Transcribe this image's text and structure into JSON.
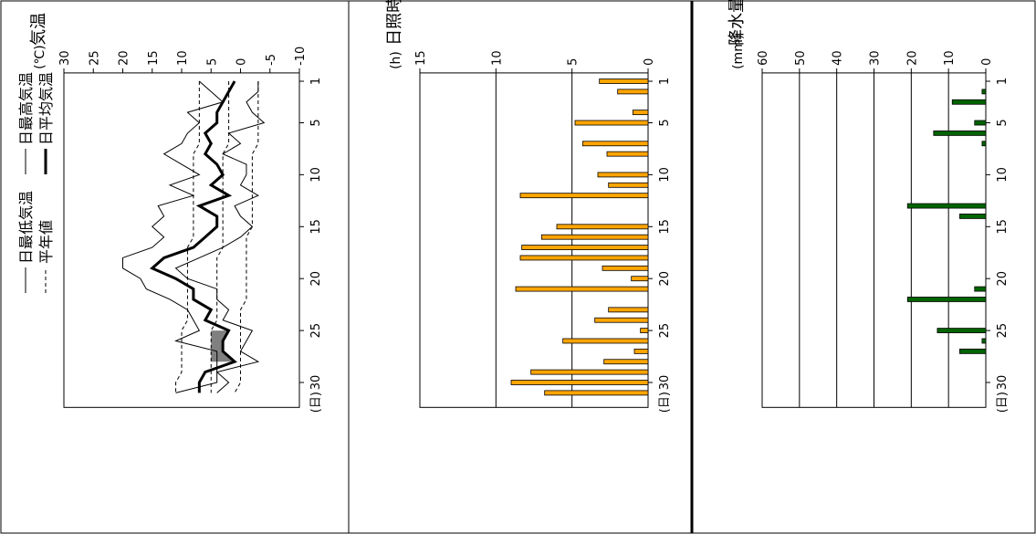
{
  "chart_data": [
    {
      "type": "line",
      "title": "気温",
      "unit_label": "(℃)",
      "ylim": [
        -10,
        30
      ],
      "y_ticks": [
        "30",
        "25",
        "20",
        "15",
        "10",
        "5",
        "0",
        "-5",
        "-10"
      ],
      "x_ticks": [
        "1",
        "5",
        "10",
        "15",
        "20",
        "25",
        "30"
      ],
      "x_unit": "(日)",
      "legend": [
        "日最高気温",
        "日平均気温",
        "日最低気温",
        "平年値"
      ],
      "x": [
        1,
        2,
        3,
        4,
        5,
        6,
        7,
        8,
        9,
        10,
        11,
        12,
        13,
        14,
        15,
        16,
        17,
        18,
        19,
        20,
        21,
        22,
        23,
        24,
        25,
        26,
        27,
        28,
        29,
        30,
        31
      ],
      "series": [
        {
          "name": "日最高気温",
          "values": [
            7,
            5,
            3,
            9,
            7,
            9,
            10,
            13,
            10,
            7,
            12,
            8,
            14,
            13,
            15,
            13,
            15,
            20,
            20,
            17,
            16,
            12,
            9,
            8,
            7,
            11,
            4,
            4,
            4,
            4,
            11
          ]
        },
        {
          "name": "日平均気温",
          "values": [
            1,
            2,
            3,
            4,
            4,
            6,
            5,
            6,
            4,
            3,
            5,
            2,
            7,
            4,
            4,
            6,
            8,
            13,
            15,
            11,
            8,
            8,
            5,
            6,
            2,
            3,
            3,
            1,
            6,
            7,
            7
          ]
        },
        {
          "name": "日最低気温",
          "values": [
            -3,
            -3,
            -1,
            -2,
            -4,
            2,
            0,
            3,
            -1,
            -1,
            0,
            -3,
            1,
            0,
            -2,
            0,
            3,
            7,
            11,
            9,
            4,
            4,
            2,
            3,
            -2,
            -1,
            0,
            -3,
            4,
            2,
            4
          ]
        },
        {
          "name": "平年値(最高)",
          "values": [
            7,
            7,
            7,
            7,
            7,
            7,
            7,
            8,
            8,
            8,
            8,
            8,
            8,
            8,
            8,
            8,
            9,
            9,
            9,
            9,
            9,
            9,
            9,
            9,
            10,
            10,
            10,
            10,
            10,
            11,
            11
          ]
        },
        {
          "name": "平年値(平均)",
          "values": [
            2,
            2,
            2,
            2,
            2,
            2,
            2,
            3,
            3,
            3,
            3,
            3,
            3,
            3,
            3,
            3,
            3,
            4,
            4,
            4,
            4,
            4,
            4,
            4,
            5,
            5,
            5,
            5,
            5,
            5,
            5
          ]
        },
        {
          "name": "平年値(最低)",
          "values": [
            -3,
            -3,
            -3,
            -3,
            -3,
            -3,
            -3,
            -2,
            -2,
            -2,
            -2,
            -2,
            -2,
            -2,
            -2,
            -1,
            -1,
            -1,
            -1,
            -1,
            -1,
            -1,
            0,
            0,
            0,
            0,
            0,
            0,
            0,
            0,
            1
          ]
        }
      ]
    },
    {
      "type": "bar",
      "title": "日照時間",
      "unit_label": "(h)",
      "ylim": [
        0,
        15
      ],
      "y_ticks": [
        "15",
        "10",
        "5",
        "0"
      ],
      "x_ticks": [
        "1",
        "5",
        "10",
        "15",
        "20",
        "25",
        "30"
      ],
      "x_unit": "(日)",
      "categories": [
        1,
        2,
        3,
        4,
        5,
        6,
        7,
        8,
        9,
        10,
        11,
        12,
        13,
        14,
        15,
        16,
        17,
        18,
        19,
        20,
        21,
        22,
        23,
        24,
        25,
        26,
        27,
        28,
        29,
        30,
        31
      ],
      "values": [
        3.2,
        2.0,
        0,
        1.0,
        4.8,
        0,
        4.3,
        2.7,
        0,
        3.3,
        2.6,
        8.4,
        0,
        0,
        6.0,
        7.0,
        8.3,
        8.4,
        3.0,
        1.1,
        8.7,
        0,
        2.6,
        3.5,
        0.5,
        5.6,
        0.9,
        2.9,
        7.7,
        9.0,
        6.8
      ],
      "bar_color": "#ffa500"
    },
    {
      "type": "bar",
      "title": "降水量",
      "unit_label": "(mm)",
      "ylim": [
        0,
        60
      ],
      "y_ticks": [
        "60",
        "50",
        "40",
        "30",
        "20",
        "10",
        "0"
      ],
      "x_ticks": [
        "1",
        "5",
        "10",
        "15",
        "20",
        "25",
        "30"
      ],
      "x_unit": "(日)",
      "categories": [
        1,
        2,
        3,
        4,
        5,
        6,
        7,
        8,
        9,
        10,
        11,
        12,
        13,
        14,
        15,
        16,
        17,
        18,
        19,
        20,
        21,
        22,
        23,
        24,
        25,
        26,
        27,
        28,
        29,
        30,
        31
      ],
      "values": [
        0,
        1,
        9,
        0,
        3,
        14,
        1,
        0,
        0,
        0,
        0,
        0,
        21,
        7,
        0,
        0,
        0,
        0,
        0,
        0,
        3,
        21,
        0,
        0,
        13,
        1,
        7,
        0,
        0,
        0,
        0
      ],
      "bar_color": "#006400"
    }
  ]
}
